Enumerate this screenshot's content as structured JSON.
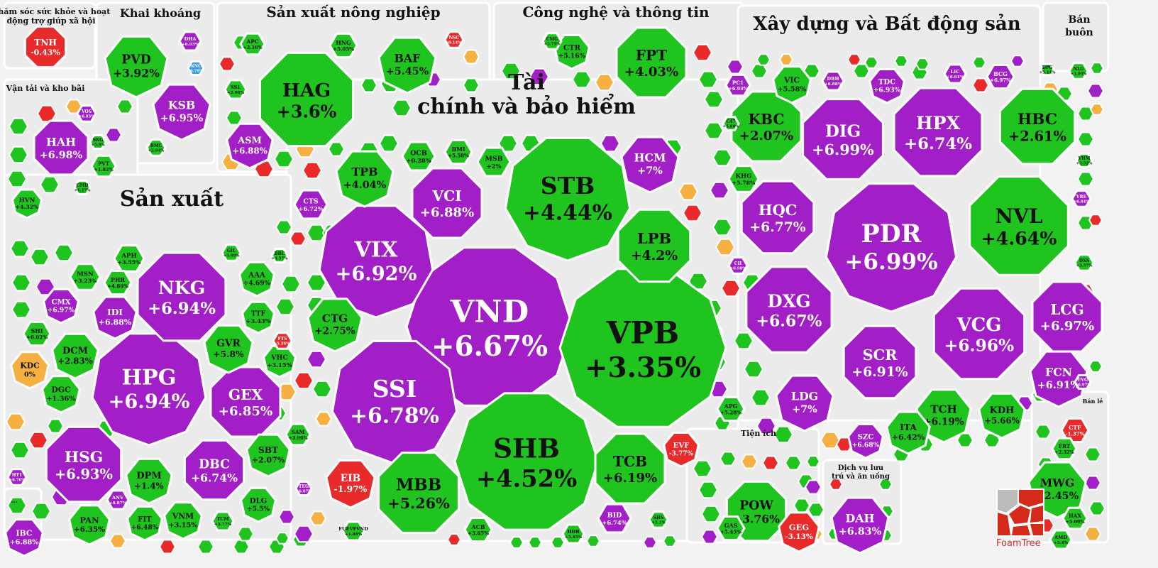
{
  "colors": {
    "up": "#1fc41f",
    "ceiling": "#a21fc7",
    "down": "#e82a2a",
    "flat": "#f5b041",
    "floor": "#3a9be0",
    "bg": "#f2f2f2"
  },
  "logo": {
    "text": "FoamTree"
  },
  "chart_data": {
    "type": "heatmap",
    "title": "",
    "sectors": [
      {
        "name": "Chăm sóc sức khỏe và hoạt động trợ giúp xã hội",
        "stocks": [
          {
            "ticker": "TNH",
            "change": -0.43
          }
        ]
      },
      {
        "name": "Khai khoáng",
        "stocks": [
          {
            "ticker": "PVD",
            "change": 3.92
          },
          {
            "ticker": "KSB",
            "change": 6.95
          },
          {
            "ticker": "DHA",
            "change": 6.93
          },
          {
            "ticker": "NNC",
            "change": -6.79
          },
          {
            "ticker": "BMC",
            "change": 2.04
          }
        ]
      },
      {
        "name": "Sản xuất nông nghiệp",
        "stocks": [
          {
            "ticker": "HAG",
            "change": 3.6
          },
          {
            "ticker": "BAF",
            "change": 5.45
          },
          {
            "ticker": "ASM",
            "change": 6.88
          },
          {
            "ticker": "APC",
            "change": 2.16
          },
          {
            "ticker": "HNG",
            "change": 5.05
          },
          {
            "ticker": "SSL",
            "change": 2.06
          },
          {
            "ticker": "NSC",
            "change": -0.14
          }
        ]
      },
      {
        "name": "Công nghệ và thông tin",
        "stocks": [
          {
            "ticker": "FPT",
            "change": 4.03
          },
          {
            "ticker": "CTR",
            "change": 5.16
          },
          {
            "ticker": "CMG",
            "change": 3.75
          }
        ]
      },
      {
        "name": "Xây dựng và Bất động sản",
        "stocks": [
          {
            "ticker": "PDR",
            "change": 6.99
          },
          {
            "ticker": "NVL",
            "change": 4.64
          },
          {
            "ticker": "HPX",
            "change": 6.74
          },
          {
            "ticker": "HBC",
            "change": 2.61
          },
          {
            "ticker": "DIG",
            "change": 6.99
          },
          {
            "ticker": "KBC",
            "change": 2.07
          },
          {
            "ticker": "HQC",
            "change": 6.77
          },
          {
            "ticker": "DXG",
            "change": 6.67
          },
          {
            "ticker": "VCG",
            "change": 6.96
          },
          {
            "ticker": "LCG",
            "change": 6.97
          },
          {
            "ticker": "SCR",
            "change": 6.91
          },
          {
            "ticker": "FCN",
            "change": 6.91
          },
          {
            "ticker": "LDG",
            "change": 7
          },
          {
            "ticker": "TCH",
            "change": 6.19
          },
          {
            "ticker": "KDH",
            "change": 5.66
          },
          {
            "ticker": "ITA",
            "change": 6.42
          },
          {
            "ticker": "SZC",
            "change": 6.68
          },
          {
            "ticker": "VIC",
            "change": 5.58
          },
          {
            "ticker": "PC1",
            "change": 6.93
          },
          {
            "ticker": "DRH",
            "change": 6.88
          },
          {
            "ticker": "TDC",
            "change": 6.93
          },
          {
            "ticker": "LIC",
            "change": 6.61
          },
          {
            "ticker": "BCG",
            "change": 6.97
          },
          {
            "ticker": "DPG",
            "change": 5.14
          },
          {
            "ticker": "NLG",
            "change": 3.06
          },
          {
            "ticker": "KHG",
            "change": 5.78
          },
          {
            "ticker": "CII",
            "change": 6.98
          },
          {
            "ticker": "C47",
            "change": 5.88
          },
          {
            "ticker": "VRE",
            "change": 6.84
          },
          {
            "ticker": "VHM",
            "change": 3.92
          },
          {
            "ticker": "DXS",
            "change": 3.57
          },
          {
            "ticker": "EVG",
            "change": 6.97
          }
        ]
      },
      {
        "name": "Bán buôn",
        "stocks": []
      },
      {
        "name": "Vận tải và kho bãi",
        "stocks": [
          {
            "ticker": "HAH",
            "change": 6.98
          },
          {
            "ticker": "HVN",
            "change": 4.32
          },
          {
            "ticker": "PVT",
            "change": 1.82
          },
          {
            "ticker": "VOS",
            "change": 6.85
          },
          {
            "ticker": "SKG",
            "change": 5.9
          },
          {
            "ticker": "GMD",
            "change": 1.17
          }
        ]
      },
      {
        "name": "Tài chính và bảo hiểm",
        "stocks": [
          {
            "ticker": "VND",
            "change": 6.67
          },
          {
            "ticker": "VPB",
            "change": 3.35
          },
          {
            "ticker": "SHB",
            "change": 4.52
          },
          {
            "ticker": "SSI",
            "change": 6.78
          },
          {
            "ticker": "STB",
            "change": 4.44
          },
          {
            "ticker": "VIX",
            "change": 6.92
          },
          {
            "ticker": "VCI",
            "change": 6.88
          },
          {
            "ticker": "LPB",
            "change": 4.2
          },
          {
            "ticker": "HCM",
            "change": 7
          },
          {
            "ticker": "MBB",
            "change": 5.26
          },
          {
            "ticker": "TCB",
            "change": 6.19
          },
          {
            "ticker": "EIB",
            "change": -1.97
          },
          {
            "ticker": "TPB",
            "change": 4.04
          },
          {
            "ticker": "CTG",
            "change": 2.75
          },
          {
            "ticker": "OCB",
            "change": 0.28
          },
          {
            "ticker": "MSB",
            "change": 2
          },
          {
            "ticker": "BMI",
            "change": 5.58
          },
          {
            "ticker": "CTS",
            "change": 6.72
          },
          {
            "ticker": "EVF",
            "change": -3.77
          },
          {
            "ticker": "BID",
            "change": 6.74
          },
          {
            "ticker": "ACB",
            "change": 3.65
          },
          {
            "ticker": "APG",
            "change": 5.28
          },
          {
            "ticker": "FUEVFVND",
            "change": 1.88
          },
          {
            "ticker": "HDB",
            "change": 3.45
          },
          {
            "ticker": "SHS",
            "change": 5.1
          }
        ]
      },
      {
        "name": "Sản xuất",
        "stocks": [
          {
            "ticker": "HPG",
            "change": 6.94
          },
          {
            "ticker": "NKG",
            "change": 6.94
          },
          {
            "ticker": "HSG",
            "change": 6.93
          },
          {
            "ticker": "GEX",
            "change": 6.85
          },
          {
            "ticker": "DBC",
            "change": 6.74
          },
          {
            "ticker": "GVR",
            "change": 5.8
          },
          {
            "ticker": "DCM",
            "change": 2.83
          },
          {
            "ticker": "DGC",
            "change": 1.36
          },
          {
            "ticker": "KDC",
            "change": 0
          },
          {
            "ticker": "IDI",
            "change": 6.88
          },
          {
            "ticker": "CMX",
            "change": 6.97
          },
          {
            "ticker": "DPM",
            "change": 1.4
          },
          {
            "ticker": "SBT",
            "change": 2.07
          },
          {
            "ticker": "PAN",
            "change": 6.35
          },
          {
            "ticker": "FIT",
            "change": 6.48
          },
          {
            "ticker": "VNM",
            "change": 3.15
          },
          {
            "ticker": "DLG",
            "change": 5.5
          },
          {
            "ticker": "AAA",
            "change": 4.69
          },
          {
            "ticker": "TTF",
            "change": 3.43
          },
          {
            "ticker": "VHC",
            "change": 3.15
          },
          {
            "ticker": "APH",
            "change": 3.55
          },
          {
            "ticker": "SHI",
            "change": 6.02
          },
          {
            "ticker": "MSN",
            "change": 3.23
          },
          {
            "ticker": "PHR",
            "change": 4.86
          },
          {
            "ticker": "ANV",
            "change": 6.87
          },
          {
            "ticker": "TCM",
            "change": 3.77
          },
          {
            "ticker": "SAM",
            "change": 3.99
          },
          {
            "ticker": "HT1",
            "change": 6.76
          },
          {
            "ticker": "FTS",
            "change": -5.36
          },
          {
            "ticker": "GIL",
            "change": 5.99
          },
          {
            "ticker": "BBC",
            "change": 4.57
          },
          {
            "ticker": "TEG",
            "change": 6.67
          }
        ]
      },
      {
        "name": "Tiện ích",
        "stocks": [
          {
            "ticker": "POW",
            "change": 3.76
          },
          {
            "ticker": "GEG",
            "change": -3.13
          },
          {
            "ticker": "GAS",
            "change": 5.45
          }
        ]
      },
      {
        "name": "Dịch vụ lưu trú và ăn uống",
        "stocks": [
          {
            "ticker": "DAH",
            "change": 6.83
          }
        ]
      },
      {
        "name": "Bán lẻ",
        "stocks": [
          {
            "ticker": "MWG",
            "change": 2.45
          },
          {
            "ticker": "CTF",
            "change": -1.37
          },
          {
            "ticker": "FRT",
            "change": 2.32
          },
          {
            "ticker": "HAX",
            "change": 5.09
          },
          {
            "ticker": "AMD",
            "change": 3.4
          }
        ]
      },
      {
        "name": "...",
        "stocks": [
          {
            "ticker": "IBC",
            "change": 6.88
          }
        ]
      }
    ]
  }
}
